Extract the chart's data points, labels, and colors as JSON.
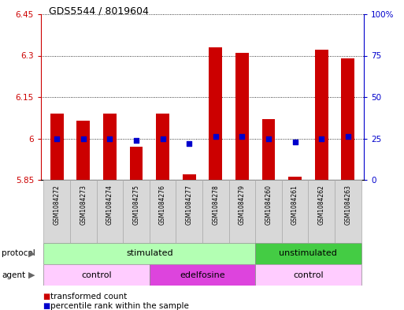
{
  "title": "GDS5544 / 8019604",
  "samples": [
    "GSM1084272",
    "GSM1084273",
    "GSM1084274",
    "GSM1084275",
    "GSM1084276",
    "GSM1084277",
    "GSM1084278",
    "GSM1084279",
    "GSM1084260",
    "GSM1084261",
    "GSM1084262",
    "GSM1084263"
  ],
  "bar_values": [
    6.09,
    6.065,
    6.09,
    5.97,
    6.09,
    5.87,
    6.33,
    6.31,
    6.07,
    5.86,
    6.32,
    6.29
  ],
  "bar_base": 5.85,
  "percentile_values": [
    25,
    25,
    25,
    24,
    25,
    22,
    26,
    26,
    25,
    23,
    25,
    26
  ],
  "ylim_left": [
    5.85,
    6.45
  ],
  "ylim_right": [
    0,
    100
  ],
  "yticks_left": [
    5.85,
    6.0,
    6.15,
    6.3,
    6.45
  ],
  "yticks_right": [
    0,
    25,
    50,
    75,
    100
  ],
  "ytick_labels_left": [
    "5.85",
    "6",
    "6.15",
    "6.3",
    "6.45"
  ],
  "ytick_labels_right": [
    "0",
    "25",
    "50",
    "75",
    "100%"
  ],
  "bar_color": "#cc0000",
  "percentile_color": "#0000cc",
  "protocol_labels": [
    [
      "stimulated",
      0,
      7
    ],
    [
      "unstimulated",
      8,
      11
    ]
  ],
  "agent_labels": [
    [
      "control",
      0,
      3
    ],
    [
      "edelfosine",
      4,
      7
    ],
    [
      "control",
      8,
      11
    ]
  ],
  "protocol_color_light": "#b3ffb3",
  "protocol_color_dark": "#44cc44",
  "agent_control_color": "#ffccff",
  "agent_edelfosine_color": "#dd44dd",
  "sample_box_color": "#d8d8d8",
  "grid_color": "#000000",
  "legend_items": [
    "transformed count",
    "percentile rank within the sample"
  ]
}
